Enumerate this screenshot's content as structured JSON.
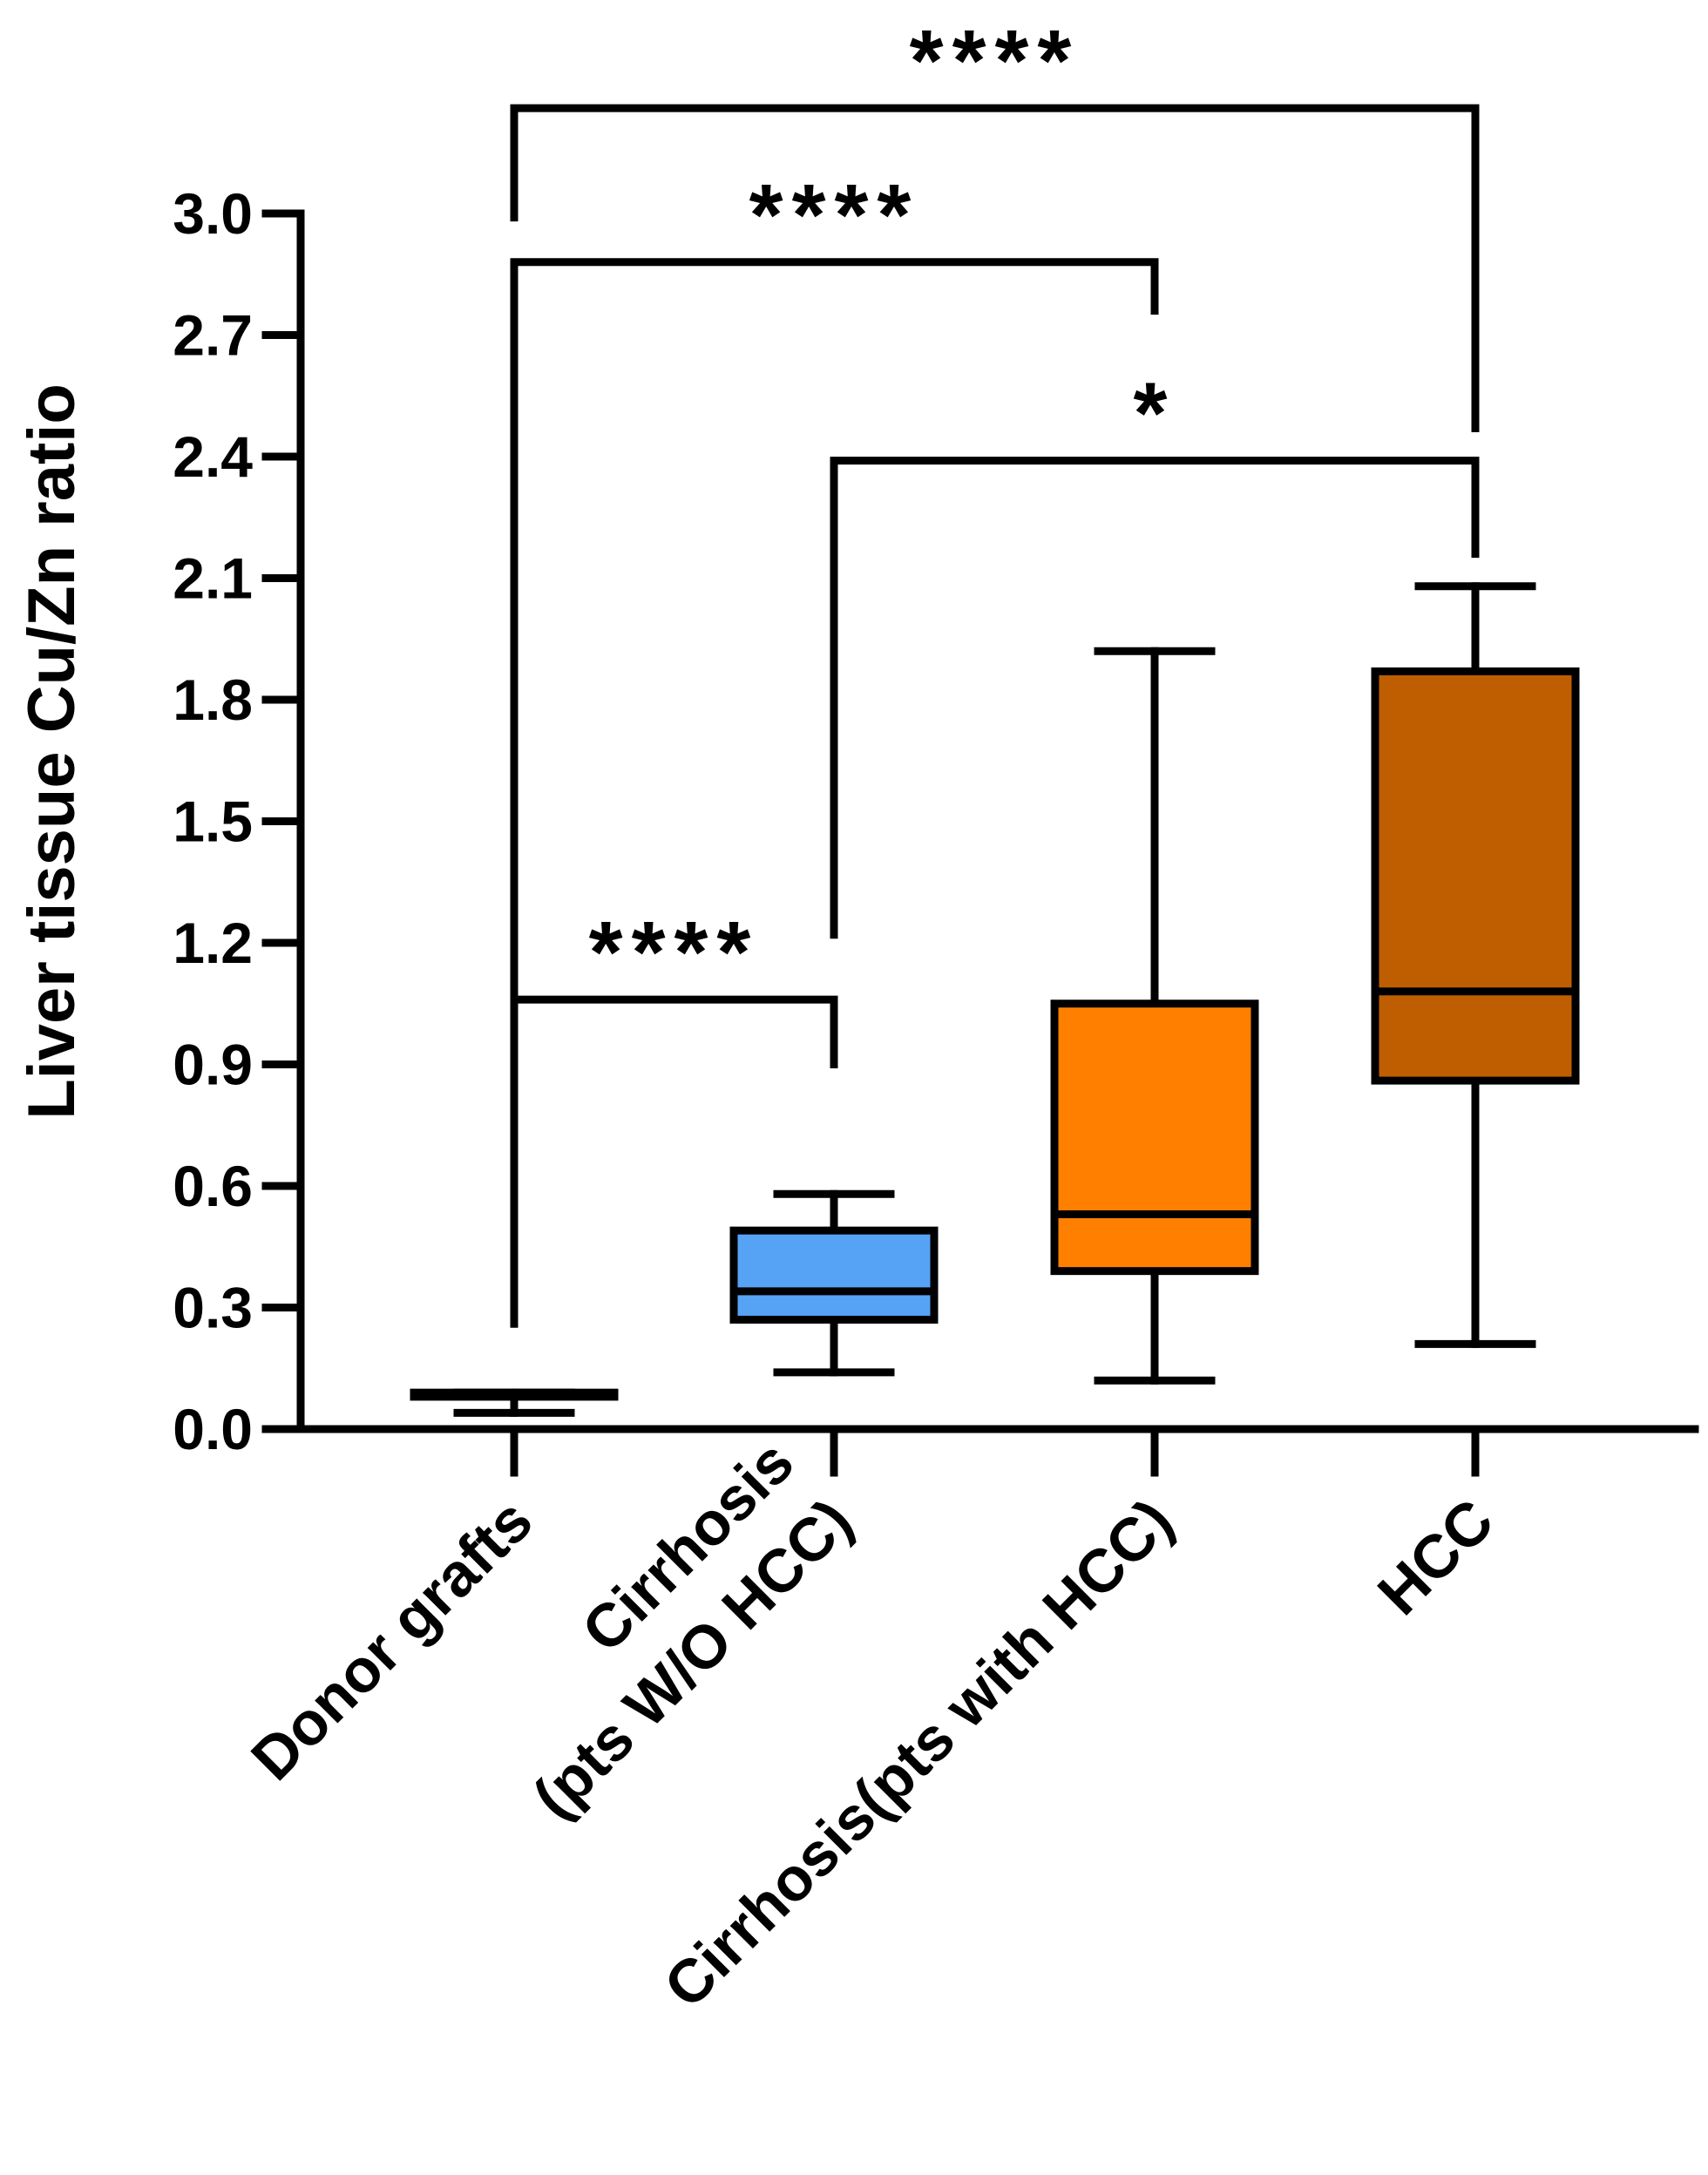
{
  "chart_data": {
    "type": "box",
    "title": "",
    "xlabel": "",
    "ylabel": "Liver tissue Cu/Zn ratio",
    "ylim": [
      0,
      3.0
    ],
    "yticks": [
      "0.0",
      "0.3",
      "0.6",
      "0.9",
      "1.2",
      "1.5",
      "1.8",
      "2.1",
      "2.4",
      "2.7",
      "3.0"
    ],
    "categories": [
      {
        "lines": [
          "Donor grafts"
        ]
      },
      {
        "lines": [
          "Cirrhosis",
          "(pts W/O HCC)"
        ]
      },
      {
        "lines": [
          "Cirrhosis(pts with HCC)"
        ]
      },
      {
        "lines": [
          "HCC"
        ]
      }
    ],
    "boxes": [
      {
        "name": "Donor grafts",
        "min": 0.04,
        "q1": 0.08,
        "median": 0.08,
        "q3": 0.09,
        "max": 0.09,
        "color": "#FFFFFF"
      },
      {
        "name": "Cirrhosis (pts W/O HCC)",
        "min": 0.14,
        "q1": 0.27,
        "median": 0.34,
        "q3": 0.49,
        "max": 0.58,
        "color": "#56A3F5"
      },
      {
        "name": "Cirrhosis(pts with HCC)",
        "min": 0.12,
        "q1": 0.39,
        "median": 0.53,
        "q3": 1.05,
        "max": 1.92,
        "color": "#FF8000"
      },
      {
        "name": "HCC",
        "min": 0.21,
        "q1": 0.86,
        "median": 1.08,
        "q3": 1.87,
        "max": 2.08,
        "color": "#BF5E00"
      }
    ],
    "comparisons": [
      {
        "from": 0,
        "to": 1,
        "label": "****",
        "bar": 1.06,
        "left_drop": 0.26,
        "right_drop": 0.9
      },
      {
        "from": 1,
        "to": 3,
        "label": "*",
        "bar": 2.39,
        "left_drop": 1.22,
        "right_drop": 2.16
      },
      {
        "from": 0,
        "to": 2,
        "label": "****",
        "bar": 2.88,
        "left_drop": 0.26,
        "right_drop": 2.76
      },
      {
        "from": 0,
        "to": 3,
        "label": "****",
        "bar": 3.26,
        "left_drop": 2.99,
        "right_drop": 2.47
      }
    ]
  }
}
